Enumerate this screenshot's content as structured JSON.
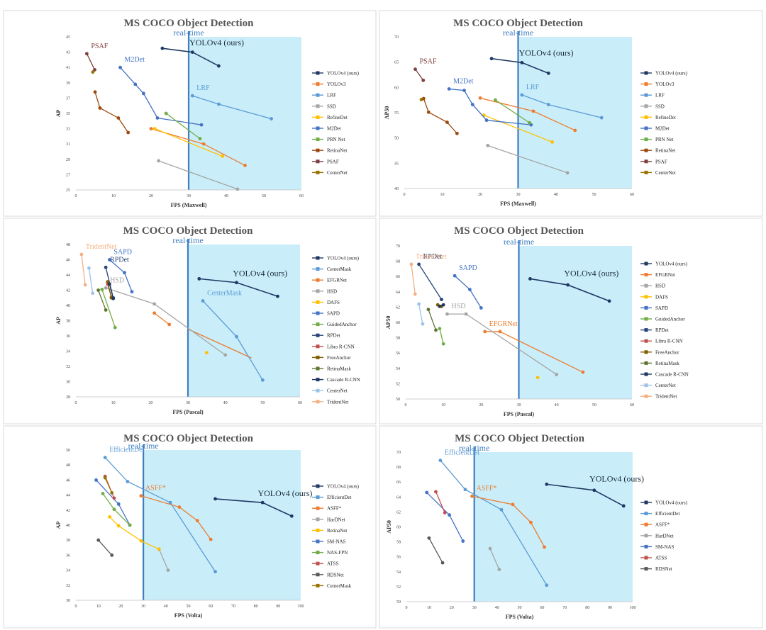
{
  "chart_data": [
    {
      "type": "line",
      "title": "MS COCO Object Detection",
      "xlabel": "FPS (Maxwell)",
      "ylabel": "AP",
      "xlim": [
        0,
        60
      ],
      "ylim": [
        25,
        45
      ],
      "xticks": [
        0,
        10,
        20,
        30,
        40,
        50,
        60
      ],
      "yticks": [
        25,
        27,
        29,
        31,
        33,
        35,
        37,
        39,
        41,
        43,
        45
      ],
      "realtime_fps": 30,
      "realtime_label": "real-time",
      "legend_position": "right",
      "series": [
        {
          "name": "YOLOv4 (ours)",
          "color": "#203864",
          "label": "YOLOv4 (ours)",
          "x": [
            23,
            31,
            38
          ],
          "y": [
            43.5,
            43.0,
            41.2
          ]
        },
        {
          "name": "YOLOv3",
          "color": "#ED7D31",
          "x": [
            20,
            34,
            45
          ],
          "y": [
            33.0,
            31.0,
            28.2
          ]
        },
        {
          "name": "LRF",
          "color": "#5B9BD5",
          "label": "LRF",
          "x": [
            31,
            38,
            52
          ],
          "y": [
            37.3,
            36.2,
            34.3
          ]
        },
        {
          "name": "SSD",
          "color": "#A5A5A5",
          "x": [
            22,
            43
          ],
          "y": [
            28.8,
            25.1
          ]
        },
        {
          "name": "RefineDet",
          "color": "#FFC000",
          "x": [
            21,
            39
          ],
          "y": [
            33.0,
            29.4
          ]
        },
        {
          "name": "M2Det",
          "color": "#4472C4",
          "label": "M2Det",
          "x": [
            11.8,
            15.8,
            18.0,
            21.7,
            33.4
          ],
          "y": [
            41.0,
            38.8,
            37.6,
            34.4,
            33.5
          ]
        },
        {
          "name": "PRN Net",
          "color": "#70AD47",
          "x": [
            24,
            33
          ],
          "y": [
            35.0,
            31.7
          ]
        },
        {
          "name": "RetinaNet",
          "color": "#9E480E",
          "x": [
            5.1,
            6.4,
            11.3,
            13.9
          ],
          "y": [
            37.8,
            35.7,
            34.4,
            32.5
          ]
        },
        {
          "name": "PSAF",
          "color": "#7F3F3F",
          "label": "PSAF",
          "x": [
            2.9,
            5.0
          ],
          "y": [
            42.8,
            40.7
          ]
        },
        {
          "name": "CenterNet",
          "color": "#997300",
          "x": [
            4.5
          ],
          "y": [
            40.4
          ]
        }
      ]
    },
    {
      "type": "line",
      "title": "MS COCO Object Detection",
      "xlabel": "FPS (Maxwell)",
      "ylabel": "AP50",
      "xlim": [
        0,
        60
      ],
      "ylim": [
        40,
        70
      ],
      "xticks": [
        0,
        10,
        20,
        30,
        40,
        50,
        60
      ],
      "yticks": [
        40,
        45,
        50,
        55,
        60,
        65,
        70
      ],
      "realtime_fps": 30,
      "realtime_label": "real-time",
      "legend_position": "right",
      "series": [
        {
          "name": "YOLOv4 (ours)",
          "color": "#203864",
          "label": "YOLOv4 (ours)",
          "x": [
            23,
            31,
            38
          ],
          "y": [
            65.7,
            64.9,
            62.8
          ]
        },
        {
          "name": "YOLOv3",
          "color": "#ED7D31",
          "x": [
            20,
            34,
            45
          ],
          "y": [
            57.9,
            55.3,
            51.5
          ]
        },
        {
          "name": "LRF",
          "color": "#5B9BD5",
          "label": "LRF",
          "x": [
            31,
            38,
            52
          ],
          "y": [
            58.5,
            56.6,
            54.0
          ]
        },
        {
          "name": "SSD",
          "color": "#A5A5A5",
          "x": [
            22,
            43
          ],
          "y": [
            48.5,
            43.1
          ]
        },
        {
          "name": "RefineDet",
          "color": "#FFC000",
          "x": [
            21,
            39
          ],
          "y": [
            54.5,
            49.2
          ]
        },
        {
          "name": "M2Det",
          "color": "#4472C4",
          "label": "M2Det",
          "x": [
            11.8,
            15.8,
            18.0,
            21.7,
            33.4
          ],
          "y": [
            59.7,
            59.4,
            56.6,
            53.5,
            52.6
          ]
        },
        {
          "name": "PRN Net",
          "color": "#70AD47",
          "x": [
            24,
            33
          ],
          "y": [
            57.5,
            53.0
          ]
        },
        {
          "name": "RetinaNet",
          "color": "#9E480E",
          "x": [
            5.1,
            6.4,
            11.3,
            13.9
          ],
          "y": [
            57.8,
            55.1,
            53.1,
            50.9
          ]
        },
        {
          "name": "PSAF",
          "color": "#7F3F3F",
          "label": "PSAF",
          "x": [
            2.9,
            5.0
          ],
          "y": [
            63.6,
            61.4
          ]
        },
        {
          "name": "CenterNet",
          "color": "#997300",
          "x": [
            4.5
          ],
          "y": [
            57.6
          ]
        }
      ]
    },
    {
      "type": "line",
      "title": "MS COCO Object Detection",
      "xlabel": "FPS (Pascal)",
      "ylabel": "AP",
      "xlim": [
        0,
        60
      ],
      "ylim": [
        28,
        48
      ],
      "xticks": [
        0,
        10,
        20,
        30,
        40,
        50,
        60
      ],
      "yticks": [
        28,
        30,
        32,
        34,
        36,
        38,
        40,
        42,
        44,
        46,
        48
      ],
      "realtime_fps": 30,
      "realtime_label": "real-time",
      "legend_position": "right",
      "series": [
        {
          "name": "YOLOv4 (ours)",
          "color": "#203864",
          "label": "YOLOv4 (ours)",
          "x": [
            33,
            43,
            54
          ],
          "y": [
            43.5,
            43.0,
            41.2
          ]
        },
        {
          "name": "CenterMask",
          "color": "#5B9BD5",
          "label": "CenterMask",
          "x": [
            34,
            43,
            50
          ],
          "y": [
            40.6,
            35.9,
            30.2
          ]
        },
        {
          "name": "EFGRNet",
          "color": "#ED7D31",
          "x": [
            21,
            25
          ],
          "y": [
            39.0,
            37.5
          ]
        },
        {
          "name": "HSD",
          "color": "#A5A5A5",
          "label": "HSD",
          "x": [
            8,
            21,
            40
          ],
          "y": [
            42.3,
            40.2,
            33.5
          ]
        },
        {
          "name": "DAFS",
          "color": "#FFC000",
          "x": [
            35
          ],
          "y": [
            33.8
          ]
        },
        {
          "name": "SAPD",
          "color": "#4472C4",
          "label": "SAPD",
          "x": [
            9,
            13,
            15
          ],
          "y": [
            46.0,
            44.3,
            41.8
          ]
        },
        {
          "name": "GuidedAnchor",
          "color": "#70AD47",
          "x": [
            7,
            10.5
          ],
          "y": [
            42.1,
            37.1
          ]
        },
        {
          "name": "RPDet",
          "color": "#264478",
          "label": "RPDet",
          "x": [
            8,
            10
          ],
          "y": [
            45.0,
            41.0
          ]
        },
        {
          "name": "Libra R-CNN",
          "color": "#C0504D",
          "x": [
            8.5,
            9.5
          ],
          "y": [
            42.8,
            41.1
          ]
        },
        {
          "name": "FreeAnchor",
          "color": "#7F6000",
          "x": [
            8.5,
            9.5
          ],
          "y": [
            43.1,
            41.0
          ]
        },
        {
          "name": "RetinaMask",
          "color": "#5F7530",
          "x": [
            6,
            8
          ],
          "y": [
            42.0,
            39.4
          ]
        },
        {
          "name": "Cascade R-CNN",
          "color": "#203864",
          "x": [
            9,
            10
          ],
          "y": [
            42.8,
            40.9
          ]
        },
        {
          "name": "CenterNet",
          "color": "#9DC3E6",
          "x": [
            3.5,
            4.5
          ],
          "y": [
            44.9,
            41.6
          ]
        },
        {
          "name": "TridentNet",
          "color": "#F4B183",
          "label": "TridentNet",
          "x": [
            1.5,
            2.5
          ],
          "y": [
            46.7,
            42.7
          ]
        }
      ],
      "extra_line": {
        "color": "#ED7D31",
        "x": [
          30,
          47
        ],
        "y": [
          36.9,
          33.1
        ]
      }
    },
    {
      "type": "line",
      "title": "MS COCO Object Detection",
      "xlabel": "FPS (Pascal)",
      "ylabel": "AP50",
      "xlim": [
        0,
        60
      ],
      "ylim": [
        50,
        70
      ],
      "xticks": [
        0,
        10,
        20,
        30,
        40,
        50,
        60
      ],
      "yticks": [
        50,
        52,
        54,
        56,
        58,
        60,
        62,
        64,
        66,
        68,
        70
      ],
      "realtime_fps": 30,
      "realtime_label": "real-time",
      "legend_position": "right",
      "series": [
        {
          "name": "YOLOv4 (ours)",
          "color": "#203864",
          "label": "YOLOv4 (ours)",
          "x": [
            33,
            43,
            54
          ],
          "y": [
            65.7,
            64.9,
            62.8
          ]
        },
        {
          "name": "EFGRNet",
          "color": "#ED7D31",
          "label": "EFGRNet",
          "x": [
            21,
            25,
            47
          ],
          "y": [
            58.8,
            58.8,
            53.5
          ]
        },
        {
          "name": "HSD",
          "color": "#A5A5A5",
          "label": "HSD",
          "x": [
            11,
            16,
            40
          ],
          "y": [
            61.1,
            61.1,
            53.2
          ]
        },
        {
          "name": "DAFS",
          "color": "#FFC000",
          "x": [
            35
          ],
          "y": [
            52.8
          ]
        },
        {
          "name": "SAPD",
          "color": "#4472C4",
          "label": "SAPD",
          "x": [
            13,
            17,
            20
          ],
          "y": [
            66.1,
            64.3,
            61.9
          ]
        },
        {
          "name": "GuidedAnchor",
          "color": "#70AD47",
          "x": [
            9,
            10
          ],
          "y": [
            59.2,
            57.2
          ]
        },
        {
          "name": "RPDet",
          "color": "#264478",
          "label": "RPDet",
          "x": [
            3.5,
            9.5
          ],
          "y": [
            67.6,
            63.0
          ]
        },
        {
          "name": "Libra R-CNN",
          "color": "#C0504D",
          "x": [
            8.5,
            9.5
          ],
          "y": [
            62.3,
            62.1
          ]
        },
        {
          "name": "FreeAnchor",
          "color": "#7F6000",
          "x": [
            8.5,
            9.5
          ],
          "y": [
            62.3,
            62.1
          ]
        },
        {
          "name": "RetinaMask",
          "color": "#5F7530",
          "x": [
            6,
            8
          ],
          "y": [
            61.7,
            59.0
          ]
        },
        {
          "name": "Cascade R-CNN",
          "color": "#203864",
          "x": [
            9,
            10
          ],
          "y": [
            62.1,
            62.3
          ]
        },
        {
          "name": "CenterNet",
          "color": "#9DC3E6",
          "x": [
            3.5,
            4.5
          ],
          "y": [
            62.4,
            59.8
          ]
        },
        {
          "name": "TridentNet",
          "color": "#F4B183",
          "label": "TridentNet",
          "x": [
            1.5,
            2.5
          ],
          "y": [
            67.6,
            63.7
          ]
        }
      ]
    },
    {
      "type": "line",
      "title": "MS COCO Object Detection",
      "xlabel": "FPS (Volta)",
      "ylabel": "AP",
      "xlim": [
        0,
        100
      ],
      "ylim": [
        30,
        50
      ],
      "xticks": [
        0,
        10,
        20,
        30,
        40,
        50,
        60,
        70,
        80,
        90,
        100
      ],
      "yticks": [
        30,
        32,
        34,
        36,
        38,
        40,
        42,
        44,
        46,
        48,
        50
      ],
      "realtime_fps": 30,
      "realtime_label": "real-time",
      "legend_position": "right",
      "series": [
        {
          "name": "YOLOv4 (ours)",
          "color": "#203864",
          "label": "YOLOv4 (ours)",
          "x": [
            62,
            83,
            96
          ],
          "y": [
            43.5,
            43.0,
            41.2
          ]
        },
        {
          "name": "EfficientDet",
          "color": "#5B9BD5",
          "label": "EfficientDet",
          "x": [
            13,
            23,
            42,
            62
          ],
          "y": [
            49.0,
            45.8,
            43.0,
            33.8
          ]
        },
        {
          "name": "ASFF*",
          "color": "#ED7D31",
          "label": "ASFF*",
          "x": [
            29,
            46,
            54,
            60
          ],
          "y": [
            43.9,
            42.4,
            40.6,
            38.1
          ]
        },
        {
          "name": "HarDNet",
          "color": "#A5A5A5",
          "x": [
            37,
            41
          ],
          "y": [
            36.8,
            34.0
          ]
        },
        {
          "name": "RetinaNet",
          "color": "#FFC000",
          "x": [
            15,
            19,
            29,
            37
          ],
          "y": [
            41.1,
            39.9,
            37.9,
            36.8
          ]
        },
        {
          "name": "SM-NAS",
          "color": "#4472C4",
          "x": [
            9,
            19,
            24
          ],
          "y": [
            46.0,
            42.8,
            40.0
          ]
        },
        {
          "name": "NAS-FPN",
          "color": "#70AD47",
          "x": [
            12,
            17,
            24
          ],
          "y": [
            44.2,
            42.1,
            40.0
          ]
        },
        {
          "name": "ATSS",
          "color": "#C0504D",
          "x": [
            13,
            17
          ],
          "y": [
            46.5,
            43.6
          ]
        },
        {
          "name": "RDSNet",
          "color": "#595959",
          "x": [
            10,
            16
          ],
          "y": [
            38.0,
            36.0
          ]
        },
        {
          "name": "CenterMask",
          "color": "#997300",
          "x": [
            13,
            16
          ],
          "y": [
            46.3,
            44.3
          ]
        }
      ]
    },
    {
      "type": "line",
      "title": "MS COCO Object Detection",
      "xlabel": "FPS (Volta)",
      "ylabel": "AP50",
      "xlim": [
        0,
        100
      ],
      "ylim": [
        50,
        70
      ],
      "xticks": [
        0,
        10,
        20,
        30,
        40,
        50,
        60,
        70,
        80,
        90,
        100
      ],
      "yticks": [
        50,
        52,
        54,
        56,
        58,
        60,
        62,
        64,
        66,
        68,
        70
      ],
      "realtime_fps": 30,
      "realtime_label": "real-time",
      "legend_position": "right",
      "series": [
        {
          "name": "YOLOv4 (ours)",
          "color": "#203864",
          "label": "YOLOv4 (ours)",
          "x": [
            62,
            83,
            96
          ],
          "y": [
            65.7,
            64.9,
            62.8
          ]
        },
        {
          "name": "EfficientDet",
          "color": "#5B9BD5",
          "label": "EfficientDet",
          "x": [
            15,
            26,
            42,
            62
          ],
          "y": [
            68.9,
            65.0,
            62.3,
            52.2
          ]
        },
        {
          "name": "ASFF*",
          "color": "#ED7D31",
          "label": "ASFF*",
          "x": [
            29,
            47,
            55,
            61
          ],
          "y": [
            64.1,
            63.0,
            60.6,
            57.3
          ]
        },
        {
          "name": "HarDNet",
          "color": "#A5A5A5",
          "x": [
            37,
            41
          ],
          "y": [
            57.1,
            54.3
          ]
        },
        {
          "name": "SM-NAS",
          "color": "#4472C4",
          "x": [
            9,
            19,
            25
          ],
          "y": [
            64.6,
            61.6,
            58.1
          ]
        },
        {
          "name": "ATSS",
          "color": "#C0504D",
          "x": [
            13,
            17
          ],
          "y": [
            64.7,
            61.9
          ]
        },
        {
          "name": "RDSNet",
          "color": "#595959",
          "x": [
            10,
            16
          ],
          "y": [
            58.5,
            55.2
          ]
        }
      ]
    }
  ]
}
